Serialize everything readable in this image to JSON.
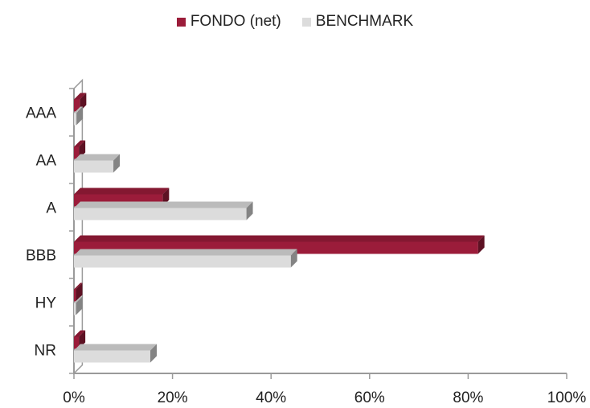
{
  "legend": [
    {
      "label": "FONDO (net)",
      "color": "#9b1c3a"
    },
    {
      "label": "BENCHMARK",
      "color": "#dcdcdc"
    }
  ],
  "chart_data": {
    "type": "bar",
    "orientation": "horizontal",
    "style": "3d",
    "categories": [
      "AAA",
      "AA",
      "A",
      "BBB",
      "HY",
      "NR"
    ],
    "series": [
      {
        "name": "FONDO (net)",
        "color": "#9b1c3a",
        "values": [
          1.2,
          1.0,
          18.0,
          82.0,
          0.4,
          1.0
        ]
      },
      {
        "name": "BENCHMARK",
        "color": "#dcdcdc",
        "values": [
          0.5,
          8.0,
          35.0,
          44.0,
          0.4,
          15.5
        ]
      }
    ],
    "xlim": [
      0,
      100
    ],
    "xticks": [
      "0%",
      "20%",
      "40%",
      "60%",
      "80%",
      "100%"
    ],
    "xtick_values": [
      0,
      20,
      40,
      60,
      80,
      100
    ],
    "grid": false,
    "legend_position": "top-center"
  }
}
